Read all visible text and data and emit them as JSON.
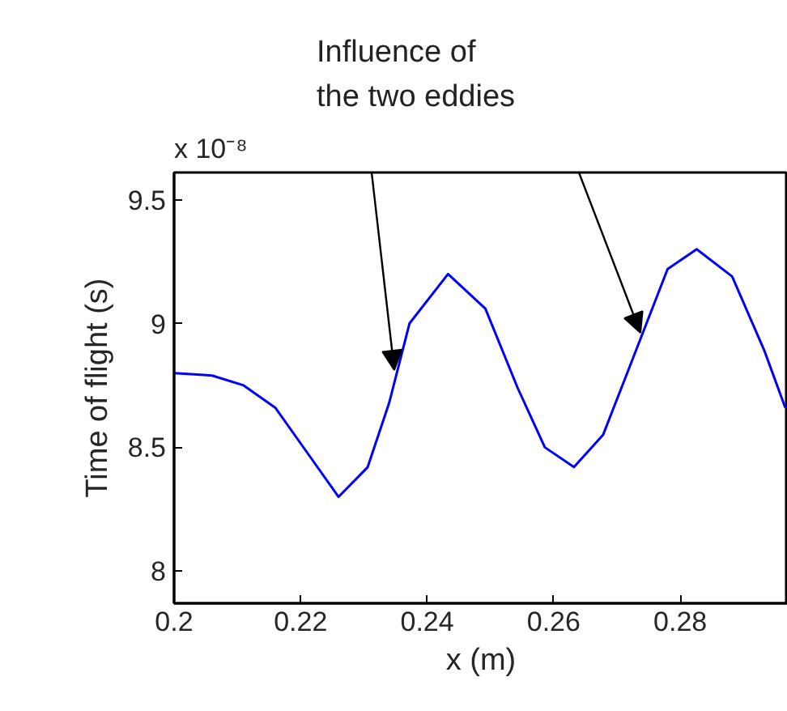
{
  "chart_data": {
    "type": "line",
    "xlabel": "x (m)",
    "ylabel": "Time of flight (s)",
    "x": [
      0.2,
      0.206,
      0.211,
      0.216,
      0.221,
      0.226,
      0.2306,
      0.234,
      0.2372,
      0.2433,
      0.2492,
      0.2543,
      0.2586,
      0.2632,
      0.2678,
      0.2739,
      0.278,
      0.2826,
      0.2882,
      0.2933,
      0.2966
    ],
    "series": [
      {
        "color": "#0000ff",
        "values": [
          8.8,
          8.79,
          8.75,
          8.66,
          8.48,
          8.3,
          8.42,
          8.68,
          9.0,
          9.2,
          9.06,
          8.74,
          8.5,
          8.42,
          8.55,
          8.95,
          9.22,
          9.3,
          9.19,
          8.89,
          8.66
        ]
      }
    ],
    "xlim": [
      0.2,
      0.297
    ],
    "xticks": [
      0.2,
      0.22,
      0.24,
      0.26,
      0.28
    ],
    "ylim": [
      7.87,
      9.61
    ],
    "yticks": [
      8,
      8.5,
      9,
      9.5
    ],
    "annotations": [
      "x 10⁻⁸",
      "Influence of\nthe two eddies"
    ],
    "grid": false,
    "line_style": "solid"
  }
}
